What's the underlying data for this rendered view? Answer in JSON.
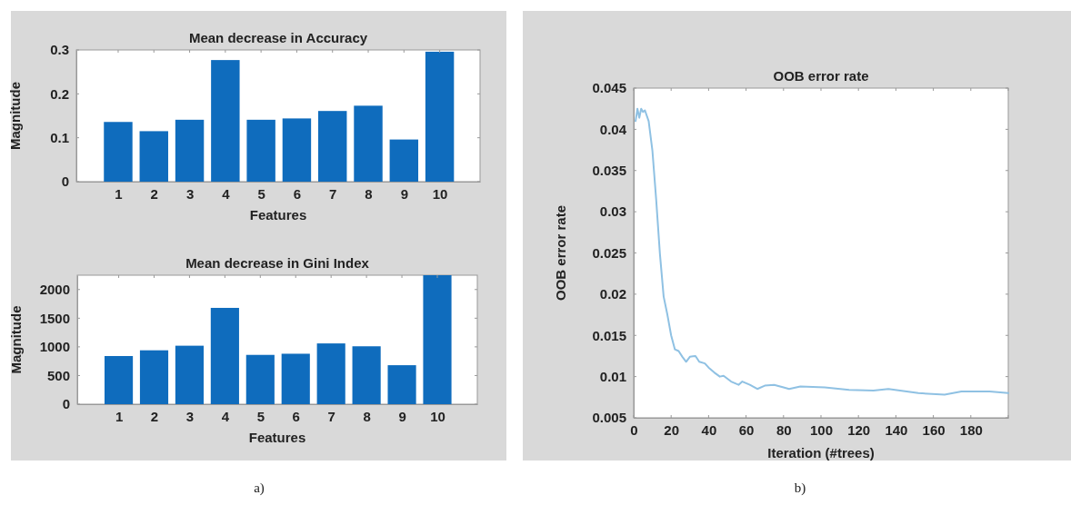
{
  "chart_data": [
    {
      "type": "bar",
      "title": "Mean decrease in Accuracy",
      "xlabel": "Features",
      "ylabel": "Magnitude",
      "categories": [
        "1",
        "2",
        "3",
        "4",
        "5",
        "6",
        "7",
        "8",
        "9",
        "10"
      ],
      "values": [
        0.136,
        0.115,
        0.141,
        0.277,
        0.141,
        0.144,
        0.161,
        0.173,
        0.096,
        0.296
      ],
      "color": "#0f6cbd",
      "ylim": [
        0,
        0.3
      ],
      "yticks": [
        0,
        0.1,
        0.2,
        0.3
      ],
      "grid": false
    },
    {
      "type": "bar",
      "title": "Mean decrease in Gini Index",
      "xlabel": "Features",
      "ylabel": "Magnitude",
      "categories": [
        "1",
        "2",
        "3",
        "4",
        "5",
        "6",
        "7",
        "8",
        "9",
        "10"
      ],
      "values": [
        840,
        940,
        1020,
        1680,
        860,
        880,
        1060,
        1010,
        680,
        2250
      ],
      "color": "#0f6cbd",
      "ylim": [
        0,
        2250
      ],
      "yticks": [
        0,
        500,
        1000,
        1500,
        2000
      ],
      "grid": false,
      "annotations": [
        "a)"
      ]
    },
    {
      "type": "line",
      "title": "OOB error rate",
      "xlabel": "Iteration (#trees)",
      "ylabel": "OOB error rate",
      "series": [
        {
          "color": "#8fc1e3",
          "x": [
            1,
            2,
            3,
            4,
            5,
            6,
            8,
            10,
            12,
            14,
            16,
            18,
            20,
            22,
            24,
            26,
            28,
            30,
            33,
            35,
            38,
            40,
            43,
            46,
            48,
            52,
            56,
            58,
            62,
            66,
            70,
            75,
            80,
            83,
            89,
            102,
            115,
            128,
            136,
            152,
            166,
            175,
            190,
            200
          ],
          "values": [
            0.041,
            0.0425,
            0.0414,
            0.0425,
            0.0421,
            0.0423,
            0.041,
            0.0374,
            0.0315,
            0.0249,
            0.0197,
            0.0175,
            0.015,
            0.0133,
            0.0131,
            0.0124,
            0.0118,
            0.0124,
            0.0125,
            0.0118,
            0.0116,
            0.0111,
            0.0105,
            0.01,
            0.0101,
            0.0094,
            0.009,
            0.0094,
            0.009,
            0.0085,
            0.0089,
            0.009,
            0.0087,
            0.0085,
            0.0088,
            0.0087,
            0.0084,
            0.0083,
            0.0085,
            0.008,
            0.0078,
            0.0082,
            0.0082,
            0.008
          ]
        }
      ],
      "xlim": [
        0,
        200
      ],
      "xticks": [
        0,
        20,
        40,
        60,
        80,
        100,
        120,
        140,
        160,
        180,
        {
          "value": 200,
          "label": null
        }
      ],
      "ylim": [
        0.005,
        0.045
      ],
      "yticks": [
        0.005,
        0.01,
        0.015,
        0.02,
        0.025,
        0.03,
        0.035,
        0.04,
        0.045
      ],
      "grid": false,
      "annotations": [
        "b)"
      ]
    }
  ]
}
